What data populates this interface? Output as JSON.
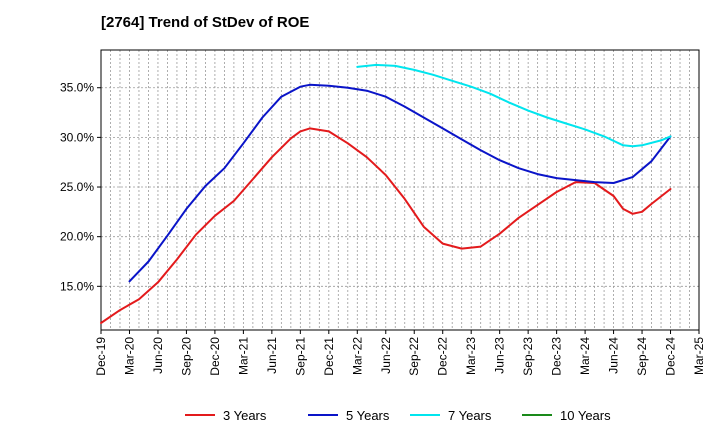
{
  "chart_data": {
    "type": "line",
    "title": "[2764]  Trend of StDev of ROE",
    "xlabel": "",
    "ylabel": "",
    "x_ticks": [
      "Dec-19",
      "Mar-20",
      "Jun-20",
      "Sep-20",
      "Dec-20",
      "Mar-21",
      "Jun-21",
      "Sep-21",
      "Dec-21",
      "Mar-22",
      "Jun-22",
      "Sep-22",
      "Dec-22",
      "Mar-23",
      "Jun-23",
      "Sep-23",
      "Dec-23",
      "Mar-24",
      "Jun-24",
      "Sep-24",
      "Dec-24",
      "Mar-25"
    ],
    "y_ticks": [
      "15.0%",
      "20.0%",
      "25.0%",
      "30.0%",
      "35.0%"
    ],
    "ylim": [
      10.6,
      38.8
    ],
    "grid": true,
    "legend_position": "bottom",
    "series": [
      {
        "name": "3 Years",
        "color": "#e31a1c",
        "points": [
          [
            "Dec-19",
            11.3
          ],
          [
            "Feb-20",
            12.6
          ],
          [
            "Apr-20",
            13.7
          ],
          [
            "Jun-20",
            15.4
          ],
          [
            "Aug-20",
            17.7
          ],
          [
            "Oct-20",
            20.2
          ],
          [
            "Dec-20",
            22.1
          ],
          [
            "Feb-21",
            23.6
          ],
          [
            "Apr-21",
            25.8
          ],
          [
            "Jun-21",
            28.0
          ],
          [
            "Aug-21",
            29.9
          ],
          [
            "Sep-21",
            30.6
          ],
          [
            "Oct-21",
            30.9
          ],
          [
            "Dec-21",
            30.6
          ],
          [
            "Feb-22",
            29.4
          ],
          [
            "Apr-22",
            28.0
          ],
          [
            "Jun-22",
            26.2
          ],
          [
            "Aug-22",
            23.8
          ],
          [
            "Oct-22",
            21.0
          ],
          [
            "Dec-22",
            19.3
          ],
          [
            "Feb-23",
            18.8
          ],
          [
            "Apr-23",
            19.0
          ],
          [
            "Jun-23",
            20.3
          ],
          [
            "Aug-23",
            21.9
          ],
          [
            "Oct-23",
            23.2
          ],
          [
            "Dec-23",
            24.5
          ],
          [
            "Feb-24",
            25.5
          ],
          [
            "Apr-24",
            25.4
          ],
          [
            "Jun-24",
            24.1
          ],
          [
            "Jul-24",
            22.8
          ],
          [
            "Aug-24",
            22.3
          ],
          [
            "Sep-24",
            22.5
          ],
          [
            "Oct-24",
            23.3
          ],
          [
            "Dec-24",
            24.8
          ]
        ]
      },
      {
        "name": "5 Years",
        "color": "#0a14c8",
        "points": [
          [
            "Mar-20",
            15.5
          ],
          [
            "May-20",
            17.5
          ],
          [
            "Jul-20",
            20.1
          ],
          [
            "Sep-20",
            22.8
          ],
          [
            "Nov-20",
            25.1
          ],
          [
            "Jan-21",
            26.9
          ],
          [
            "Mar-21",
            29.4
          ],
          [
            "May-21",
            32.0
          ],
          [
            "Jul-21",
            34.1
          ],
          [
            "Sep-21",
            35.1
          ],
          [
            "Oct-21",
            35.3
          ],
          [
            "Dec-21",
            35.2
          ],
          [
            "Feb-22",
            35.0
          ],
          [
            "Apr-22",
            34.7
          ],
          [
            "Jun-22",
            34.1
          ],
          [
            "Aug-22",
            33.1
          ],
          [
            "Oct-22",
            32.0
          ],
          [
            "Dec-22",
            30.9
          ],
          [
            "Feb-23",
            29.8
          ],
          [
            "Apr-23",
            28.7
          ],
          [
            "Jun-23",
            27.7
          ],
          [
            "Aug-23",
            26.9
          ],
          [
            "Oct-23",
            26.3
          ],
          [
            "Dec-23",
            25.9
          ],
          [
            "Feb-24",
            25.7
          ],
          [
            "Apr-24",
            25.5
          ],
          [
            "Jun-24",
            25.4
          ],
          [
            "Aug-24",
            26.0
          ],
          [
            "Oct-24",
            27.6
          ],
          [
            "Dec-24",
            30.1
          ]
        ]
      },
      {
        "name": "7 Years",
        "color": "#00e5ee",
        "points": [
          [
            "Mar-22",
            37.1
          ],
          [
            "May-22",
            37.3
          ],
          [
            "Jul-22",
            37.2
          ],
          [
            "Sep-22",
            36.8
          ],
          [
            "Nov-22",
            36.3
          ],
          [
            "Jan-23",
            35.7
          ],
          [
            "Mar-23",
            35.1
          ],
          [
            "May-23",
            34.4
          ],
          [
            "Jul-23",
            33.5
          ],
          [
            "Sep-23",
            32.7
          ],
          [
            "Nov-23",
            32.0
          ],
          [
            "Jan-24",
            31.4
          ],
          [
            "Mar-24",
            30.8
          ],
          [
            "May-24",
            30.1
          ],
          [
            "Jul-24",
            29.2
          ],
          [
            "Aug-24",
            29.1
          ],
          [
            "Sep-24",
            29.2
          ],
          [
            "Nov-24",
            29.7
          ],
          [
            "Dec-24",
            30.1
          ]
        ]
      },
      {
        "name": "10 Years",
        "color": "#1a8a1a",
        "points": []
      }
    ]
  }
}
